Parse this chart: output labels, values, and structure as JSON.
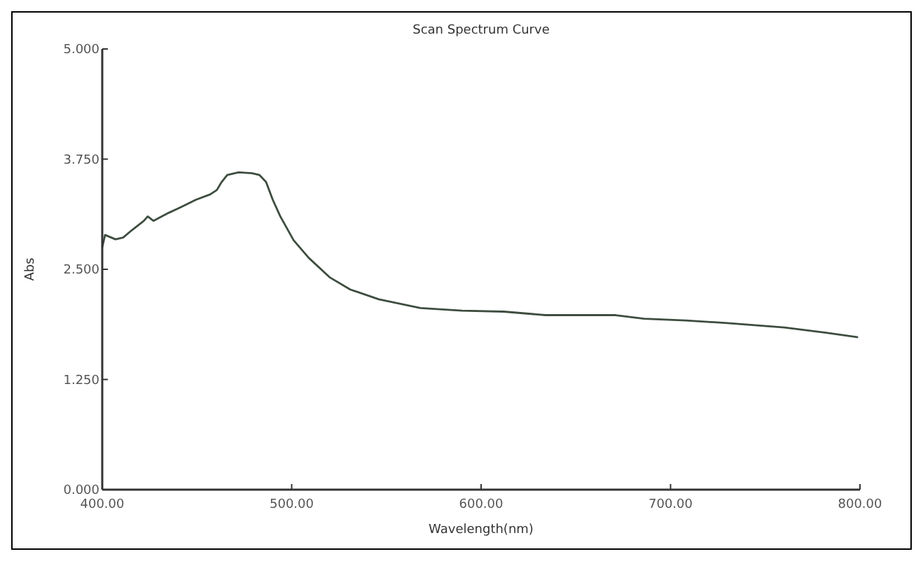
{
  "chart_data": {
    "type": "line",
    "title": "Scan Spectrum Curve",
    "xlabel": "Wavelength(nm)",
    "ylabel": "Abs",
    "xlim": [
      400,
      800
    ],
    "ylim": [
      0,
      5
    ],
    "xticks": [
      {
        "value": 400,
        "label": "400.00"
      },
      {
        "value": 500,
        "label": "500.00"
      },
      {
        "value": 600,
        "label": "600.00"
      },
      {
        "value": 700,
        "label": "700.00"
      },
      {
        "value": 800,
        "label": "800.00"
      }
    ],
    "yticks": [
      {
        "value": 0,
        "label": "0.000"
      },
      {
        "value": 1.25,
        "label": "1.250"
      },
      {
        "value": 2.5,
        "label": "2.500"
      },
      {
        "value": 3.75,
        "label": "3.750"
      },
      {
        "value": 5,
        "label": "5.000"
      }
    ],
    "grid": false,
    "marker": "none",
    "line_style": "solid",
    "series": [
      {
        "color": "#3d4d3f",
        "x": [
          400,
          401.5,
          407,
          411,
          416,
          422,
          424,
          427,
          435,
          442,
          449.5,
          457,
          460.5,
          463,
          466,
          472,
          479,
          483,
          486.5,
          490,
          494,
          501,
          509,
          520,
          531,
          546,
          568,
          590,
          612,
          634,
          656,
          671,
          686,
          708,
          730,
          760,
          782,
          799
        ],
        "values": [
          2.75,
          2.89,
          2.84,
          2.86,
          2.95,
          3.05,
          3.1,
          3.05,
          3.14,
          3.21,
          3.29,
          3.35,
          3.4,
          3.49,
          3.57,
          3.6,
          3.59,
          3.57,
          3.49,
          3.29,
          3.1,
          2.83,
          2.63,
          2.41,
          2.27,
          2.16,
          2.06,
          2.03,
          2.02,
          1.98,
          1.98,
          1.98,
          1.94,
          1.92,
          1.89,
          1.84,
          1.78,
          1.73
        ]
      }
    ]
  }
}
